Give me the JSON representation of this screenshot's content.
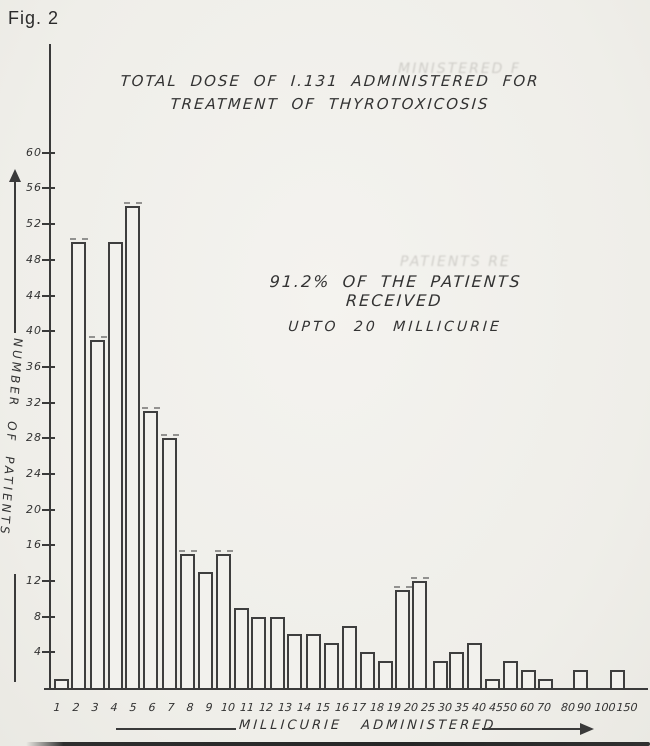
{
  "figure_label": "Fig. 2",
  "title": {
    "line1": "TOTAL DOSE OF I.131 ADMINISTERED FOR",
    "line2": "TREATMENT OF THYROTOXICOSIS"
  },
  "annotation": {
    "line1": "91.2% OF THE PATIENTS RECEIVED",
    "line2": "UPTO 20 MILLICURIE"
  },
  "ghost_text": {
    "title_ghost": "MINISTERED F",
    "annotation_ghost": "PATIENTS RE"
  },
  "colors": {
    "paper": "#f1f0ec",
    "ink": "#3a3a3a"
  },
  "chart_data": {
    "type": "bar",
    "title": "TOTAL DOSE OF I.131 ADMINISTERED FOR TREATMENT OF THYROTOXICOSIS",
    "xlabel": "MILLICURIE ADMINISTERED",
    "ylabel": "NUMBER OF PATIENTS",
    "categories": [
      "1",
      "2",
      "3",
      "4",
      "5",
      "6",
      "7",
      "8",
      "9",
      "10",
      "11",
      "12",
      "13",
      "14",
      "15",
      "16",
      "17",
      "18",
      "19",
      "20",
      "25",
      "30",
      "35",
      "40",
      "45",
      "50",
      "60",
      "70",
      "80",
      "90",
      "100",
      "150"
    ],
    "values": [
      1,
      50,
      39,
      50,
      54,
      31,
      28,
      15,
      13,
      15,
      9,
      8,
      8,
      6,
      6,
      5,
      7,
      4,
      3,
      11,
      12,
      3,
      4,
      5,
      1,
      3,
      2,
      1,
      0,
      2,
      0,
      2
    ],
    "y_ticks": [
      4,
      8,
      12,
      16,
      20,
      24,
      28,
      32,
      36,
      40,
      44,
      48,
      52,
      56,
      60
    ],
    "ylim": [
      0,
      62
    ],
    "grid": false,
    "legend": "none",
    "annotation": "91.2% OF THE PATIENTS RECEIVED UPTO 20 MILLICURIE",
    "dashed_cap_categories": [
      "2",
      "3",
      "5",
      "6",
      "7",
      "8",
      "10",
      "20",
      "25"
    ]
  }
}
